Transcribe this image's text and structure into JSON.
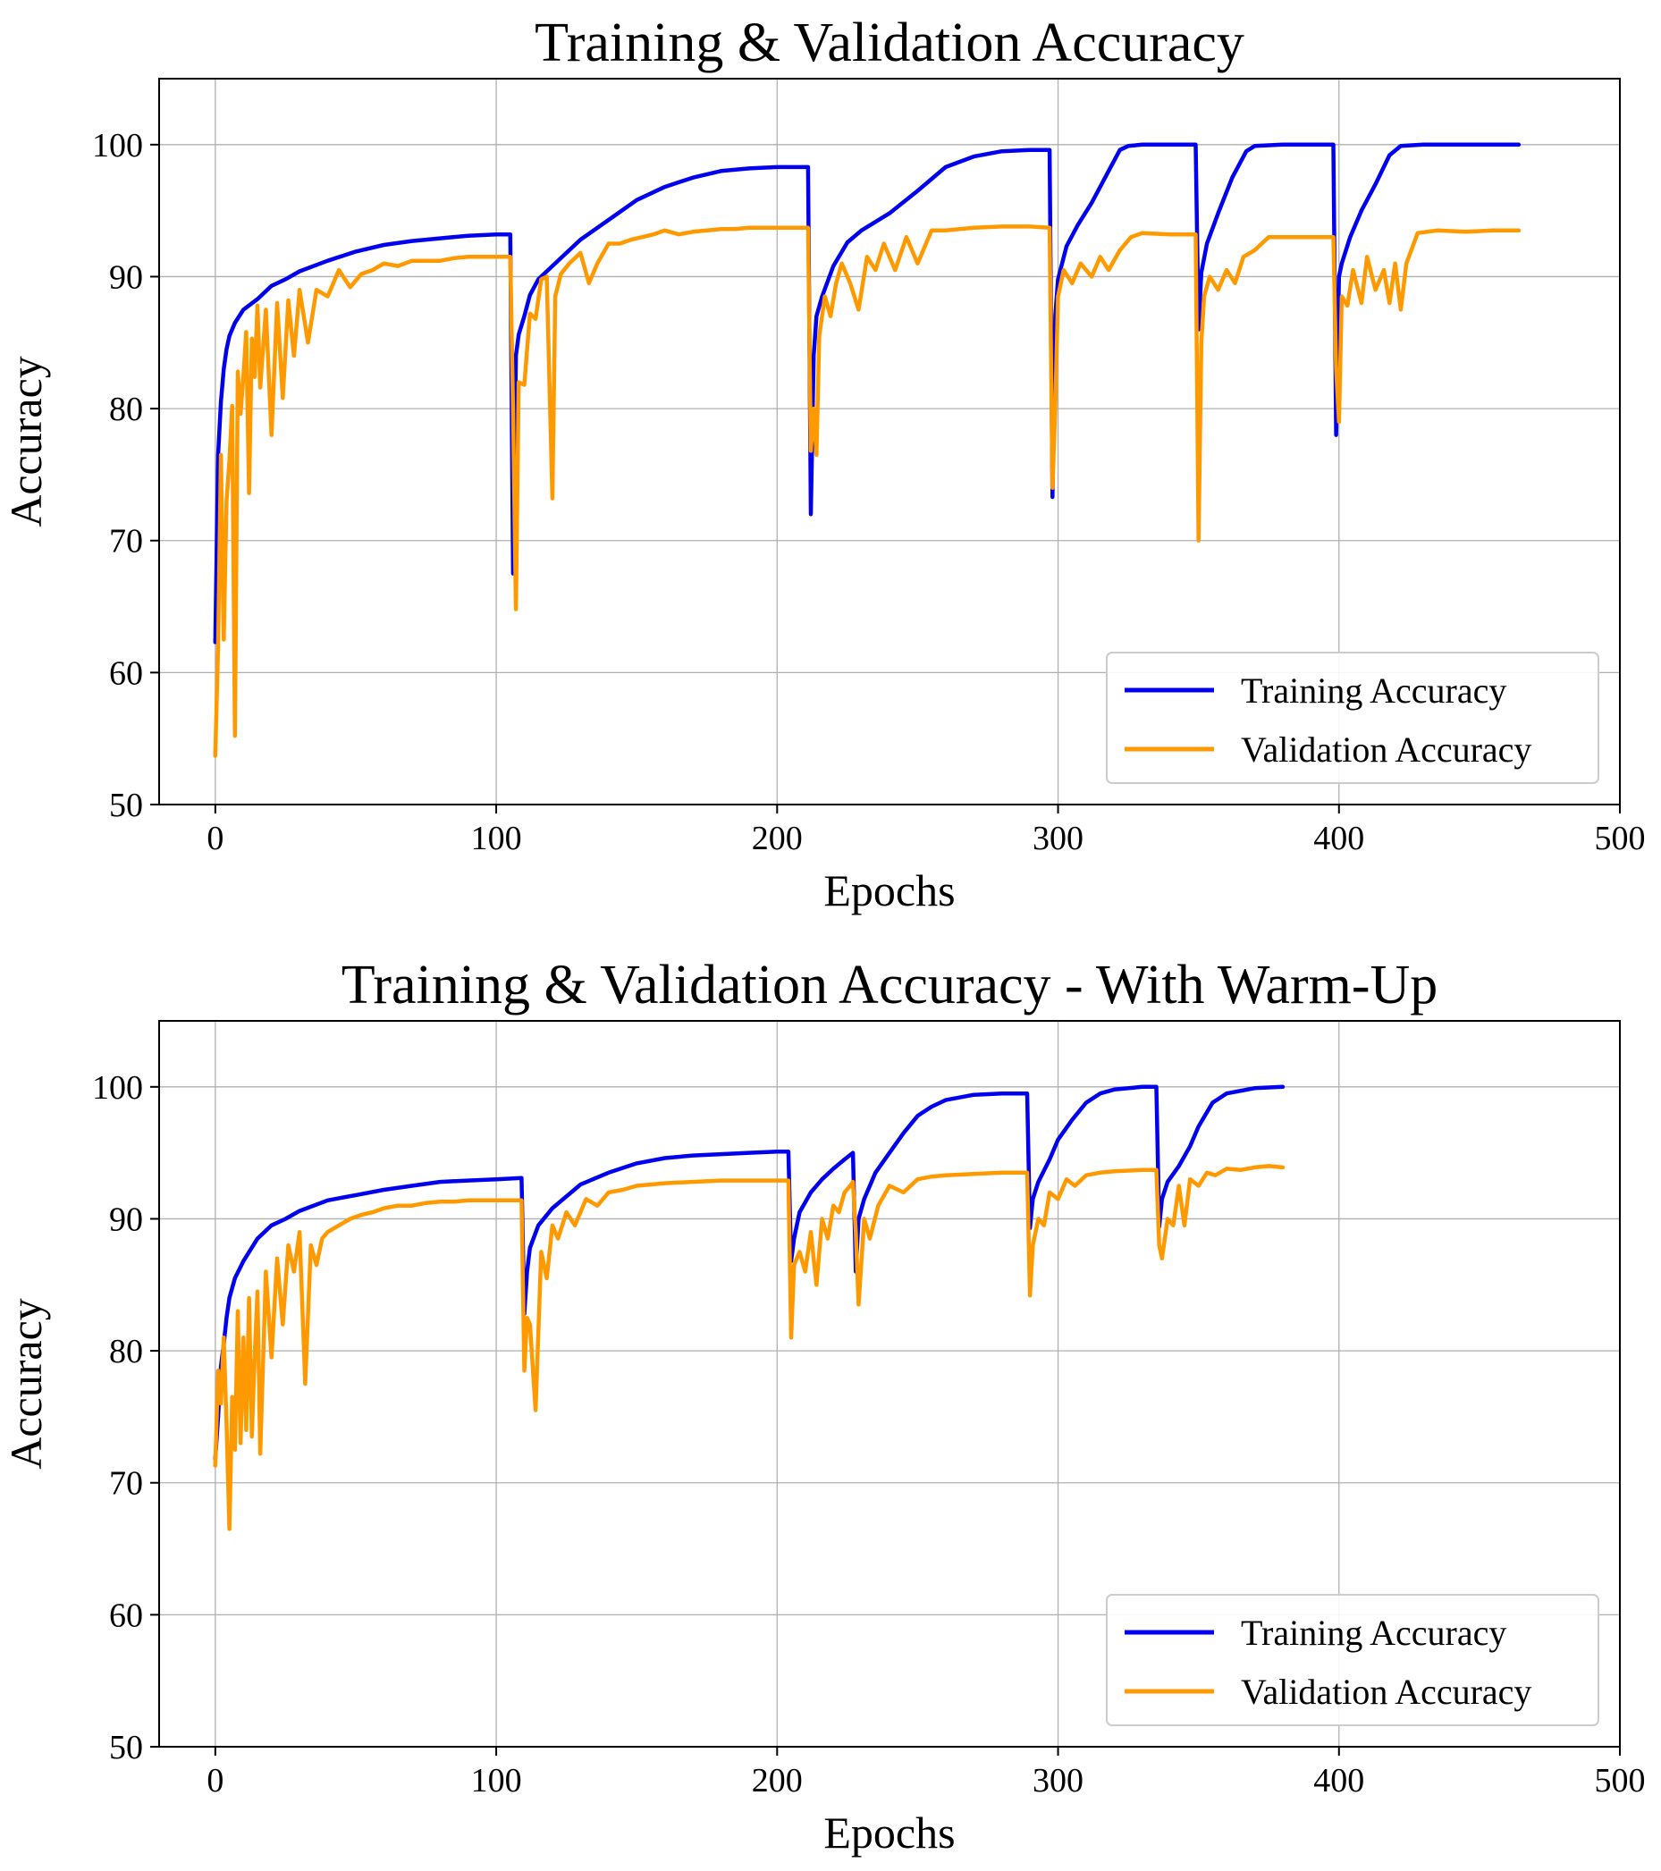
{
  "chart_data": [
    {
      "type": "line",
      "title": "Training & Validation Accuracy",
      "xlabel": "Epochs",
      "ylabel": "Accuracy",
      "xlim": [
        -20,
        500
      ],
      "ylim": [
        50,
        105
      ],
      "xticks": [
        0,
        100,
        200,
        300,
        400,
        500
      ],
      "yticks": [
        50,
        60,
        70,
        80,
        90,
        100
      ],
      "xtick_labels": [
        "0",
        "100",
        "200",
        "300",
        "400",
        "500"
      ],
      "ytick_labels": [
        "50",
        "60",
        "70",
        "80",
        "90",
        "100"
      ],
      "grid": true,
      "legend_position": "lower-right",
      "series": [
        {
          "name": "Training Accuracy",
          "color": "#0000ee",
          "x": [
            0,
            1,
            2,
            3,
            4,
            5,
            7,
            10,
            15,
            20,
            25,
            30,
            40,
            50,
            60,
            70,
            80,
            90,
            100,
            105,
            106,
            107,
            108,
            110,
            112,
            115,
            120,
            130,
            140,
            150,
            160,
            170,
            180,
            190,
            200,
            211,
            212,
            213,
            214,
            216,
            220,
            225,
            230,
            240,
            250,
            260,
            270,
            280,
            290,
            297,
            298,
            299,
            300,
            303,
            307,
            312,
            318,
            322,
            325,
            330,
            340,
            349,
            350,
            351,
            353,
            357,
            362,
            367,
            370,
            380,
            398,
            399,
            400,
            401,
            404,
            408,
            413,
            418,
            422,
            430,
            445,
            464
          ],
          "y": [
            62.3,
            76.5,
            80.5,
            83.0,
            84.5,
            85.5,
            86.5,
            87.5,
            88.3,
            89.3,
            89.8,
            90.4,
            91.2,
            91.9,
            92.4,
            92.7,
            92.9,
            93.1,
            93.2,
            93.2,
            67.5,
            84.0,
            85.6,
            87.0,
            88.6,
            89.8,
            90.8,
            92.8,
            94.3,
            95.8,
            96.8,
            97.5,
            98.0,
            98.2,
            98.3,
            98.3,
            72.0,
            84.0,
            87.0,
            88.5,
            90.8,
            92.6,
            93.5,
            94.8,
            96.5,
            98.3,
            99.1,
            99.5,
            99.6,
            99.6,
            73.3,
            87.0,
            89.8,
            92.3,
            93.9,
            95.6,
            98.0,
            99.6,
            99.9,
            100.0,
            100.0,
            100.0,
            86.0,
            90.3,
            92.5,
            94.8,
            97.5,
            99.5,
            99.9,
            100.0,
            100.0,
            78.0,
            90.0,
            91.0,
            93.0,
            95.0,
            97.0,
            99.2,
            99.9,
            100.0,
            100.0,
            100.0
          ]
        },
        {
          "name": "Validation Accuracy",
          "color": "#ff9900",
          "x": [
            0,
            1,
            2,
            3,
            4,
            5,
            6,
            7,
            8,
            9,
            10,
            11,
            12,
            13,
            14,
            15,
            16,
            18,
            20,
            22,
            24,
            26,
            28,
            30,
            33,
            36,
            40,
            44,
            48,
            52,
            56,
            60,
            65,
            70,
            75,
            80,
            85,
            90,
            95,
            100,
            105,
            106,
            107,
            108,
            110,
            112,
            114,
            116,
            118,
            120,
            121,
            123,
            126,
            130,
            133,
            136,
            140,
            144,
            148,
            152,
            156,
            160,
            165,
            170,
            175,
            180,
            185,
            190,
            195,
            200,
            205,
            211,
            212,
            213,
            214,
            215,
            217,
            219,
            221,
            223,
            226,
            229,
            232,
            235,
            238,
            242,
            246,
            250,
            255,
            260,
            265,
            270,
            280,
            290,
            297,
            298,
            299,
            300,
            302,
            305,
            308,
            312,
            315,
            318,
            322,
            326,
            330,
            340,
            349,
            350,
            351,
            352,
            354,
            357,
            360,
            363,
            366,
            370,
            375,
            380,
            390,
            398,
            399,
            400,
            401,
            403,
            405,
            408,
            410,
            413,
            416,
            418,
            420,
            422,
            424,
            428,
            435,
            445,
            455,
            464
          ],
          "y": [
            53.7,
            62.0,
            76.5,
            62.5,
            73.0,
            76.0,
            80.2,
            55.2,
            82.8,
            79.6,
            82.5,
            85.8,
            73.6,
            85.3,
            82.4,
            87.8,
            81.6,
            87.5,
            78.0,
            88.0,
            80.8,
            88.2,
            84.0,
            89.0,
            85.0,
            89.0,
            88.5,
            90.5,
            89.2,
            90.2,
            90.5,
            91.0,
            90.8,
            91.2,
            91.2,
            91.2,
            91.4,
            91.5,
            91.5,
            91.5,
            91.5,
            80.0,
            64.8,
            82.0,
            81.8,
            87.2,
            86.8,
            89.8,
            90.0,
            73.2,
            88.5,
            90.2,
            91.0,
            91.8,
            89.5,
            91.0,
            92.5,
            92.5,
            92.8,
            93.0,
            93.2,
            93.5,
            93.2,
            93.4,
            93.5,
            93.6,
            93.6,
            93.7,
            93.7,
            93.7,
            93.7,
            93.7,
            76.8,
            80.0,
            76.5,
            85.5,
            88.5,
            87.0,
            89.5,
            91.0,
            89.5,
            87.5,
            91.5,
            90.5,
            92.5,
            90.5,
            93.0,
            91.0,
            93.5,
            93.5,
            93.6,
            93.7,
            93.8,
            93.8,
            93.7,
            74.0,
            80.0,
            88.5,
            90.5,
            89.5,
            91.0,
            90.0,
            91.5,
            90.5,
            92.0,
            93.0,
            93.3,
            93.2,
            93.2,
            70.0,
            85.0,
            88.5,
            90.0,
            89.0,
            90.5,
            89.5,
            91.5,
            92.0,
            93.0,
            93.0,
            93.0,
            93.0,
            83.0,
            79.0,
            88.5,
            87.8,
            90.5,
            88.0,
            91.5,
            89.0,
            90.5,
            88.0,
            91.0,
            87.5,
            91.0,
            93.3,
            93.5,
            93.4,
            93.5,
            93.5
          ]
        }
      ]
    },
    {
      "type": "line",
      "title": "Training & Validation Accuracy - With Warm-Up",
      "xlabel": "Epochs",
      "ylabel": "Accuracy",
      "xlim": [
        -20,
        500
      ],
      "ylim": [
        50,
        105
      ],
      "xticks": [
        0,
        100,
        200,
        300,
        400,
        500
      ],
      "yticks": [
        50,
        60,
        70,
        80,
        90,
        100
      ],
      "xtick_labels": [
        "0",
        "100",
        "200",
        "300",
        "400",
        "500"
      ],
      "ytick_labels": [
        "50",
        "60",
        "70",
        "80",
        "90",
        "100"
      ],
      "grid": true,
      "legend_position": "lower-right",
      "series": [
        {
          "name": "Training Accuracy",
          "color": "#0000ee",
          "x": [
            0,
            1,
            2,
            3,
            4,
            5,
            7,
            10,
            15,
            20,
            25,
            30,
            40,
            50,
            60,
            70,
            80,
            90,
            100,
            109,
            110,
            111,
            112,
            115,
            120,
            130,
            140,
            150,
            160,
            170,
            180,
            190,
            200,
            204,
            205,
            206,
            208,
            212,
            216,
            220,
            224,
            227,
            228,
            229,
            231,
            235,
            240,
            245,
            250,
            255,
            260,
            270,
            280,
            289,
            290,
            291,
            293,
            297,
            300,
            305,
            310,
            315,
            320,
            330,
            335,
            336,
            337,
            339,
            343,
            347,
            350,
            355,
            360,
            370,
            380
          ],
          "y": [
            71.8,
            75.0,
            78.8,
            80.5,
            82.5,
            84.0,
            85.5,
            86.8,
            88.5,
            89.5,
            90.0,
            90.6,
            91.4,
            91.8,
            92.2,
            92.5,
            92.8,
            92.9,
            93.0,
            93.1,
            82.8,
            86.0,
            87.8,
            89.5,
            90.8,
            92.6,
            93.5,
            94.2,
            94.6,
            94.8,
            94.9,
            95.0,
            95.1,
            95.1,
            86.8,
            88.5,
            90.5,
            92.0,
            93.0,
            93.8,
            94.5,
            95.0,
            86.0,
            90.0,
            91.5,
            93.5,
            95.0,
            96.5,
            97.8,
            98.5,
            99.0,
            99.4,
            99.5,
            99.5,
            89.3,
            91.5,
            92.8,
            94.5,
            96.0,
            97.5,
            98.8,
            99.5,
            99.8,
            100.0,
            100.0,
            89.4,
            91.5,
            92.8,
            94.0,
            95.5,
            97.0,
            98.8,
            99.5,
            99.9,
            100.0
          ]
        },
        {
          "name": "Validation Accuracy",
          "color": "#ff9900",
          "x": [
            0,
            1,
            2,
            3,
            4,
            5,
            6,
            7,
            8,
            9,
            10,
            11,
            12,
            13,
            14,
            15,
            16,
            18,
            20,
            22,
            24,
            26,
            28,
            30,
            32,
            34,
            36,
            38,
            40,
            44,
            48,
            52,
            56,
            60,
            65,
            70,
            75,
            80,
            85,
            90,
            95,
            100,
            109,
            110,
            111,
            112,
            114,
            116,
            118,
            120,
            122,
            125,
            128,
            132,
            136,
            140,
            145,
            150,
            160,
            170,
            180,
            190,
            200,
            204,
            205,
            206,
            208,
            210,
            212,
            214,
            216,
            218,
            220,
            222,
            224,
            226,
            227,
            228,
            229,
            231,
            233,
            236,
            240,
            245,
            250,
            255,
            260,
            270,
            280,
            289,
            290,
            291,
            293,
            295,
            297,
            300,
            303,
            306,
            310,
            315,
            320,
            330,
            335,
            336,
            337,
            339,
            341,
            343,
            345,
            347,
            350,
            353,
            356,
            360,
            365,
            370,
            375,
            380
          ],
          "y": [
            71.3,
            78.5,
            76.0,
            81.0,
            74.5,
            66.5,
            76.5,
            72.5,
            83.0,
            73.0,
            81.0,
            74.0,
            84.0,
            73.5,
            79.5,
            84.5,
            72.2,
            86.0,
            79.5,
            87.0,
            82.0,
            88.0,
            86.0,
            89.0,
            77.5,
            88.0,
            86.5,
            88.5,
            89.0,
            89.5,
            90.0,
            90.3,
            90.5,
            90.8,
            91.0,
            91.0,
            91.2,
            91.3,
            91.3,
            91.4,
            91.4,
            91.4,
            91.4,
            78.5,
            82.5,
            82.0,
            75.5,
            87.5,
            85.5,
            89.5,
            88.5,
            90.5,
            89.5,
            91.5,
            91.0,
            92.0,
            92.2,
            92.5,
            92.7,
            92.8,
            92.9,
            92.9,
            92.9,
            92.9,
            81.0,
            86.5,
            87.5,
            86.0,
            89.0,
            85.0,
            90.0,
            88.5,
            91.0,
            90.5,
            92.0,
            92.5,
            92.8,
            89.0,
            83.5,
            90.0,
            88.5,
            91.0,
            92.5,
            92.0,
            93.0,
            93.2,
            93.3,
            93.4,
            93.5,
            93.5,
            84.2,
            88.0,
            90.0,
            89.5,
            92.0,
            91.5,
            93.0,
            92.5,
            93.3,
            93.5,
            93.6,
            93.7,
            93.7,
            88.0,
            87.0,
            90.0,
            89.5,
            92.5,
            89.5,
            93.0,
            92.5,
            93.5,
            93.3,
            93.8,
            93.7,
            93.9,
            94.0,
            93.9
          ]
        }
      ]
    }
  ]
}
